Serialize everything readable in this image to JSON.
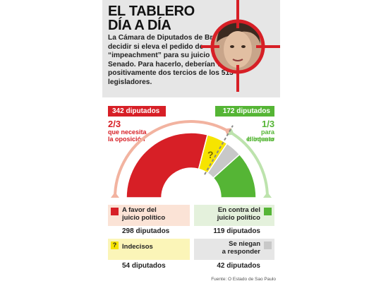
{
  "header": {
    "title_line1": "EL TABLERO",
    "title_line2": "DÍA A DÍA",
    "intro": "La Cámara de Diputados de Brasil debe decidir si eleva el pedido de “impeachment” para su juicio en el Senado. Para hacerlo, deberían votar positivamente dos tercios de los 513 legisladores."
  },
  "thresholds": {
    "left_label": "342 diputados",
    "left_fraction": "2/3",
    "left_caption_line1": "que necesita",
    "left_caption_line2": "la oposición",
    "right_label": "172 diputados",
    "right_fraction": "1/3",
    "right_caption_line1": "para bloquear",
    "right_caption_line2": "el intento"
  },
  "legend": {
    "favor_line1": "A favor del",
    "favor_line2": "juicio político",
    "favor_count": "298 diputados",
    "contra_line1": "En contra del",
    "contra_line2": "juicio político",
    "contra_count": "119 diputados",
    "indecisos": "Indecisos",
    "indecisos_count": "54 diputados",
    "niegan_line1": "Se niegan",
    "niegan_line2": "a responder",
    "niegan_count": "42 diputados"
  },
  "source": "Fuente: O Estado de Sao Paulo",
  "chart_data": {
    "type": "pie",
    "shape": "semicircle-donut",
    "total": 513,
    "segments": [
      {
        "name": "A favor del juicio político",
        "value": 298,
        "color": "#d71f26"
      },
      {
        "name": "Indecisos",
        "value": 54,
        "color": "#f6e400"
      },
      {
        "name": "Se niegan a responder",
        "value": 42,
        "color": "#c8c8c8"
      },
      {
        "name": "En contra del juicio político",
        "value": 119,
        "color": "#55b535"
      }
    ],
    "thresholds": [
      {
        "label": "2/3",
        "value": 342
      },
      {
        "label": "1/3",
        "value": 172
      }
    ],
    "colors": {
      "red": "#d71f26",
      "green": "#55b535",
      "yellow": "#f6e400",
      "gray": "#c8c8c8",
      "arrow_left": "#f2b3a0",
      "arrow_right": "#bde3ad"
    }
  }
}
